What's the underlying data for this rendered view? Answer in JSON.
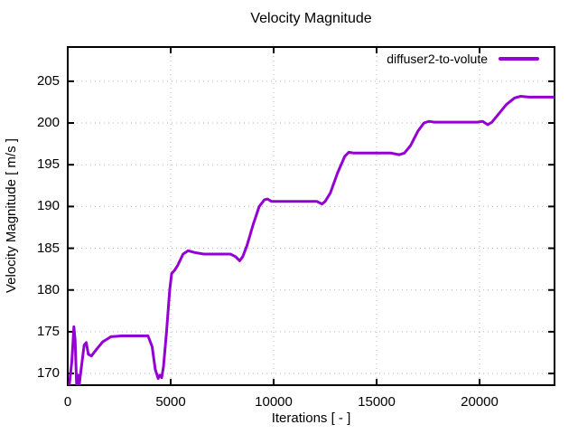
{
  "figure": {
    "background": "#ffffff",
    "border_color": "#000000",
    "grid_color": "#b9b9b9"
  },
  "chart_data": {
    "type": "line",
    "title": "Velocity Magnitude",
    "xlabel": "Iterations [ - ]",
    "ylabel": "Velocity Magnitude [ m/s ]",
    "xlim": [
      0,
      23640
    ],
    "ylim": [
      168.6,
      209.1
    ],
    "x_ticks": [
      0,
      5000,
      10000,
      15000,
      20000
    ],
    "y_ticks": [
      170,
      175,
      180,
      185,
      190,
      195,
      200,
      205
    ],
    "grid": "dotted",
    "legend_position": "top-right-inside",
    "series": [
      {
        "name": "diffuser2-to-volute",
        "color": "#9400d3",
        "points": [
          [
            80,
            168.7
          ],
          [
            200,
            171.5
          ],
          [
            300,
            175.6
          ],
          [
            360,
            174.0
          ],
          [
            430,
            168.7
          ],
          [
            500,
            169.8
          ],
          [
            560,
            168.7
          ],
          [
            650,
            170.5
          ],
          [
            800,
            173.4
          ],
          [
            900,
            173.7
          ],
          [
            1000,
            172.3
          ],
          [
            1150,
            172.1
          ],
          [
            1400,
            172.9
          ],
          [
            1700,
            173.8
          ],
          [
            2100,
            174.4
          ],
          [
            2600,
            174.5
          ],
          [
            3900,
            174.5
          ],
          [
            4100,
            173.2
          ],
          [
            4250,
            170.5
          ],
          [
            4390,
            169.4
          ],
          [
            4480,
            169.8
          ],
          [
            4560,
            169.5
          ],
          [
            4650,
            170.8
          ],
          [
            4800,
            175.0
          ],
          [
            4950,
            180.0
          ],
          [
            5050,
            182.0
          ],
          [
            5200,
            182.4
          ],
          [
            5350,
            183.0
          ],
          [
            5600,
            184.3
          ],
          [
            5850,
            184.7
          ],
          [
            6150,
            184.5
          ],
          [
            6600,
            184.3
          ],
          [
            7900,
            184.3
          ],
          [
            8150,
            184.0
          ],
          [
            8350,
            183.5
          ],
          [
            8500,
            184.0
          ],
          [
            8700,
            185.3
          ],
          [
            9000,
            187.8
          ],
          [
            9300,
            190.0
          ],
          [
            9550,
            190.8
          ],
          [
            9700,
            190.9
          ],
          [
            9900,
            190.6
          ],
          [
            10300,
            190.6
          ],
          [
            12100,
            190.6
          ],
          [
            12350,
            190.3
          ],
          [
            12500,
            190.6
          ],
          [
            12750,
            191.6
          ],
          [
            13100,
            194.0
          ],
          [
            13450,
            196.0
          ],
          [
            13650,
            196.5
          ],
          [
            13900,
            196.4
          ],
          [
            15700,
            196.4
          ],
          [
            16100,
            196.2
          ],
          [
            16350,
            196.4
          ],
          [
            16650,
            197.3
          ],
          [
            17000,
            199.0
          ],
          [
            17300,
            200.0
          ],
          [
            17550,
            200.2
          ],
          [
            17800,
            200.1
          ],
          [
            19900,
            200.1
          ],
          [
            20150,
            200.2
          ],
          [
            20400,
            199.8
          ],
          [
            20600,
            200.1
          ],
          [
            20900,
            201.0
          ],
          [
            21300,
            202.2
          ],
          [
            21700,
            203.0
          ],
          [
            22000,
            203.2
          ],
          [
            22400,
            203.1
          ],
          [
            23640,
            203.1
          ]
        ]
      }
    ]
  }
}
